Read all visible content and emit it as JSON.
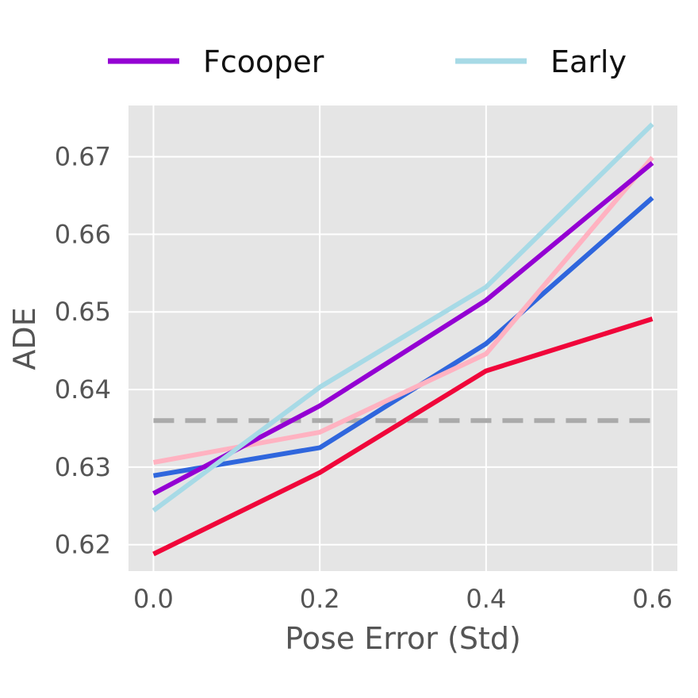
{
  "chart_data": {
    "type": "line",
    "title": "",
    "xlabel": "Pose Error (Std)",
    "ylabel": "ADE",
    "x": [
      0.0,
      0.2,
      0.4,
      0.6
    ],
    "xlim": [
      -0.03,
      0.63
    ],
    "ylim": [
      0.6166,
      0.6766
    ],
    "xticks": [
      0.0,
      0.2,
      0.4,
      0.6
    ],
    "xtick_labels": [
      "0.0",
      "0.2",
      "0.4",
      "0.6"
    ],
    "yticks": [
      0.62,
      0.63,
      0.64,
      0.65,
      0.66,
      0.67
    ],
    "ytick_labels": [
      "0.62",
      "0.63",
      "0.64",
      "0.65",
      "0.66",
      "0.67"
    ],
    "grid": true,
    "legend_position": "top",
    "series": [
      {
        "name": "",
        "color": "#2f66dd",
        "values": [
          0.6289,
          0.6325,
          0.6459,
          0.6647
        ]
      },
      {
        "name": "",
        "color": "#f0063a",
        "values": [
          0.6188,
          0.6293,
          0.6424,
          0.6491
        ]
      },
      {
        "name": "",
        "color": "#ffb2c1",
        "values": [
          0.6306,
          0.6345,
          0.6446,
          0.6699
        ]
      },
      {
        "name": "Fcooper",
        "color": "#9400d3",
        "values": [
          0.6266,
          0.6379,
          0.6515,
          0.6692
        ]
      },
      {
        "name": "Early",
        "color": "#a7dae6",
        "values": [
          0.6244,
          0.6403,
          0.6532,
          0.6742
        ]
      }
    ],
    "reference_line": {
      "y": 0.636,
      "color": "#aaaaaa",
      "style": "dashed"
    }
  }
}
